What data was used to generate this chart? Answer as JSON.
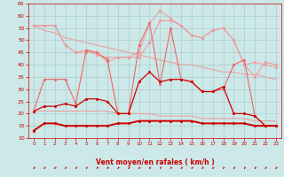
{
  "x": [
    0,
    1,
    2,
    3,
    4,
    5,
    6,
    7,
    8,
    9,
    10,
    11,
    12,
    13,
    14,
    15,
    16,
    17,
    18,
    19,
    20,
    21,
    22,
    23
  ],
  "line_avg": [
    13,
    16,
    16,
    15,
    15,
    15,
    15,
    15,
    16,
    16,
    17,
    17,
    17,
    17,
    17,
    17,
    16,
    16,
    16,
    16,
    16,
    15,
    15,
    15
  ],
  "line_gust_dark": [
    21,
    23,
    23,
    24,
    23,
    26,
    26,
    25,
    20,
    20,
    33,
    37,
    33,
    34,
    34,
    33,
    29,
    29,
    31,
    20,
    20,
    19,
    15,
    15
  ],
  "line_upper1": [
    21,
    34,
    34,
    34,
    24,
    46,
    45,
    42,
    20,
    20,
    48,
    57,
    32,
    55,
    34,
    33,
    29,
    29,
    30,
    40,
    42,
    19,
    15,
    15
  ],
  "line_ref1": [
    56,
    56,
    56,
    48,
    45,
    45,
    45,
    41,
    43,
    43,
    43,
    49,
    58,
    58,
    56,
    52,
    51,
    54,
    55,
    50,
    40,
    41,
    40,
    39
  ],
  "line_ref2": [
    56,
    56,
    56,
    48,
    45,
    46,
    44,
    43,
    43,
    43,
    45,
    57,
    62,
    59,
    56,
    52,
    51,
    54,
    55,
    50,
    40,
    35,
    41,
    40
  ],
  "line_trend1": [
    56,
    54,
    53,
    51,
    50,
    49,
    48,
    47,
    46,
    45,
    44,
    43,
    42,
    41,
    40,
    40,
    39,
    38,
    37,
    37,
    36,
    36,
    35,
    34
  ],
  "line_trend2": [
    21,
    21,
    21,
    21,
    21,
    21,
    21,
    21,
    20,
    20,
    20,
    20,
    19,
    19,
    19,
    19,
    18,
    18,
    18,
    18,
    18,
    17,
    17,
    17
  ],
  "background_color": "#cde8e8",
  "grid_color": "#aacece",
  "line_color_dark_red": "#cc0000",
  "line_color_med_red": "#ee6666",
  "line_color_light_red": "#ee9999",
  "arrow_color": "#cc0000",
  "xlabel": "Vent moyen/en rafales ( km/h )",
  "xlabel_color": "#cc0000",
  "tick_color": "#cc0000",
  "ylim": [
    10,
    65
  ],
  "yticks": [
    10,
    15,
    20,
    25,
    30,
    35,
    40,
    45,
    50,
    55,
    60,
    65
  ],
  "xlim": [
    -0.5,
    23.5
  ]
}
